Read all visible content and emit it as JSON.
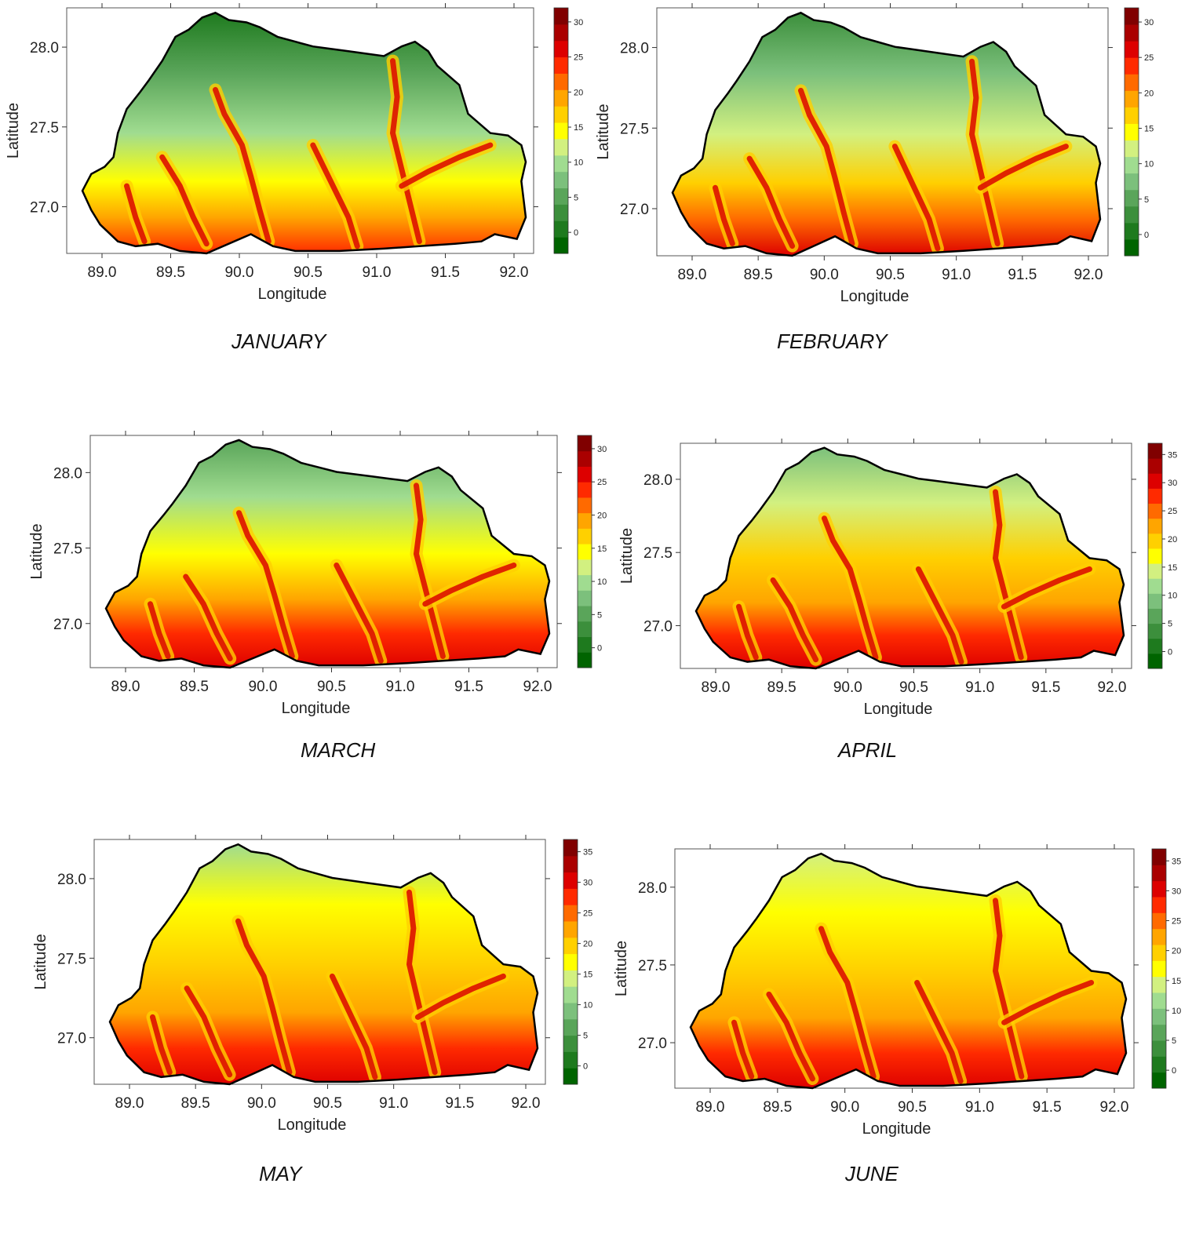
{
  "figure": {
    "x_axis_title": "Longitude",
    "y_axis_title": "Latitude",
    "x_ticks": [
      "89.0",
      "89.5",
      "90.0",
      "90.5",
      "91.0",
      "91.5",
      "92.0"
    ],
    "y_ticks": [
      "28.0",
      "27.5",
      "27.0"
    ],
    "colormap": [
      "#006400",
      "#1e7a1e",
      "#3c8f3c",
      "#5aa55a",
      "#7cc07c",
      "#a0dc90",
      "#d2f080",
      "#ffff00",
      "#ffd000",
      "#ffa500",
      "#ff6a00",
      "#ff2a00",
      "#dd0000",
      "#aa0000",
      "#800000"
    ]
  },
  "panels": [
    {
      "month": "JANUARY",
      "colorbar_ticks": [
        "30",
        "25",
        "20",
        "15",
        "10",
        "5",
        "0"
      ],
      "colorbar_range": [
        -3,
        32
      ],
      "palette_shift": 0
    },
    {
      "month": "FEBRUARY",
      "colorbar_ticks": [
        "30",
        "25",
        "20",
        "15",
        "10",
        "5",
        "0"
      ],
      "colorbar_range": [
        -3,
        32
      ],
      "palette_shift": 1
    },
    {
      "month": "MARCH",
      "colorbar_ticks": [
        "30",
        "25",
        "20",
        "15",
        "10",
        "5",
        "0"
      ],
      "colorbar_range": [
        -3,
        32
      ],
      "palette_shift": 2
    },
    {
      "month": "APRIL",
      "colorbar_ticks": [
        "35",
        "30",
        "25",
        "20",
        "15",
        "10",
        "5",
        "0"
      ],
      "colorbar_range": [
        -3,
        37
      ],
      "palette_shift": 3
    },
    {
      "month": "MAY",
      "colorbar_ticks": [
        "35",
        "30",
        "25",
        "20",
        "15",
        "10",
        "5",
        "0"
      ],
      "colorbar_range": [
        -3,
        37
      ],
      "palette_shift": 4
    },
    {
      "month": "JUNE",
      "colorbar_ticks": [
        "35",
        "30",
        "25",
        "20",
        "15",
        "10",
        "5",
        "0"
      ],
      "colorbar_range": [
        -3,
        37
      ],
      "palette_shift": 5
    }
  ]
}
